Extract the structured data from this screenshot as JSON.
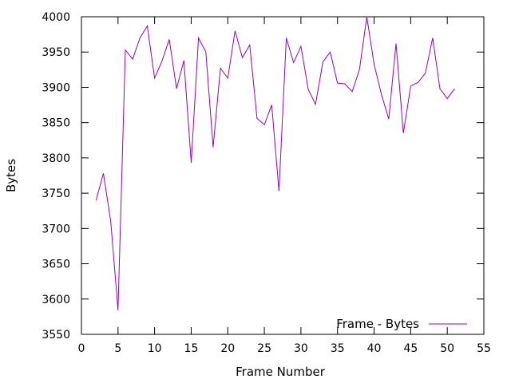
{
  "chart_data": {
    "type": "line",
    "title": "",
    "xlabel": "Frame Number",
    "ylabel": "Bytes",
    "xlim": [
      0,
      55
    ],
    "ylim": [
      3550,
      4000
    ],
    "xticks": [
      0,
      5,
      10,
      15,
      20,
      25,
      30,
      35,
      40,
      45,
      50,
      55
    ],
    "yticks": [
      3550,
      3600,
      3650,
      3700,
      3750,
      3800,
      3850,
      3900,
      3950,
      4000
    ],
    "grid": false,
    "legend_position": "bottom-right",
    "series": [
      {
        "name": "Frame - Bytes",
        "color": "#9400d3",
        "x": [
          2,
          3,
          4,
          5,
          6,
          7,
          8,
          9,
          10,
          11,
          12,
          13,
          14,
          15,
          16,
          17,
          18,
          19,
          20,
          21,
          22,
          23,
          24,
          25,
          26,
          27,
          28,
          29,
          30,
          31,
          32,
          33,
          34,
          35,
          36,
          37,
          38,
          39,
          40,
          41,
          42,
          43,
          44,
          45,
          46,
          47,
          48,
          49,
          50,
          51
        ],
        "y": [
          3740,
          3778,
          3710,
          3584,
          3953,
          3940,
          3970,
          3987,
          3913,
          3937,
          3968,
          3898,
          3938,
          3793,
          3970,
          3950,
          3815,
          3927,
          3913,
          3980,
          3942,
          3960,
          3856,
          3847,
          3875,
          3753,
          3970,
          3935,
          3958,
          3897,
          3876,
          3936,
          3950,
          3906,
          3905,
          3894,
          3925,
          4000,
          3933,
          3890,
          3855,
          3962,
          3835,
          3902,
          3907,
          3920,
          3970,
          3898,
          3884,
          3898
        ]
      }
    ]
  }
}
